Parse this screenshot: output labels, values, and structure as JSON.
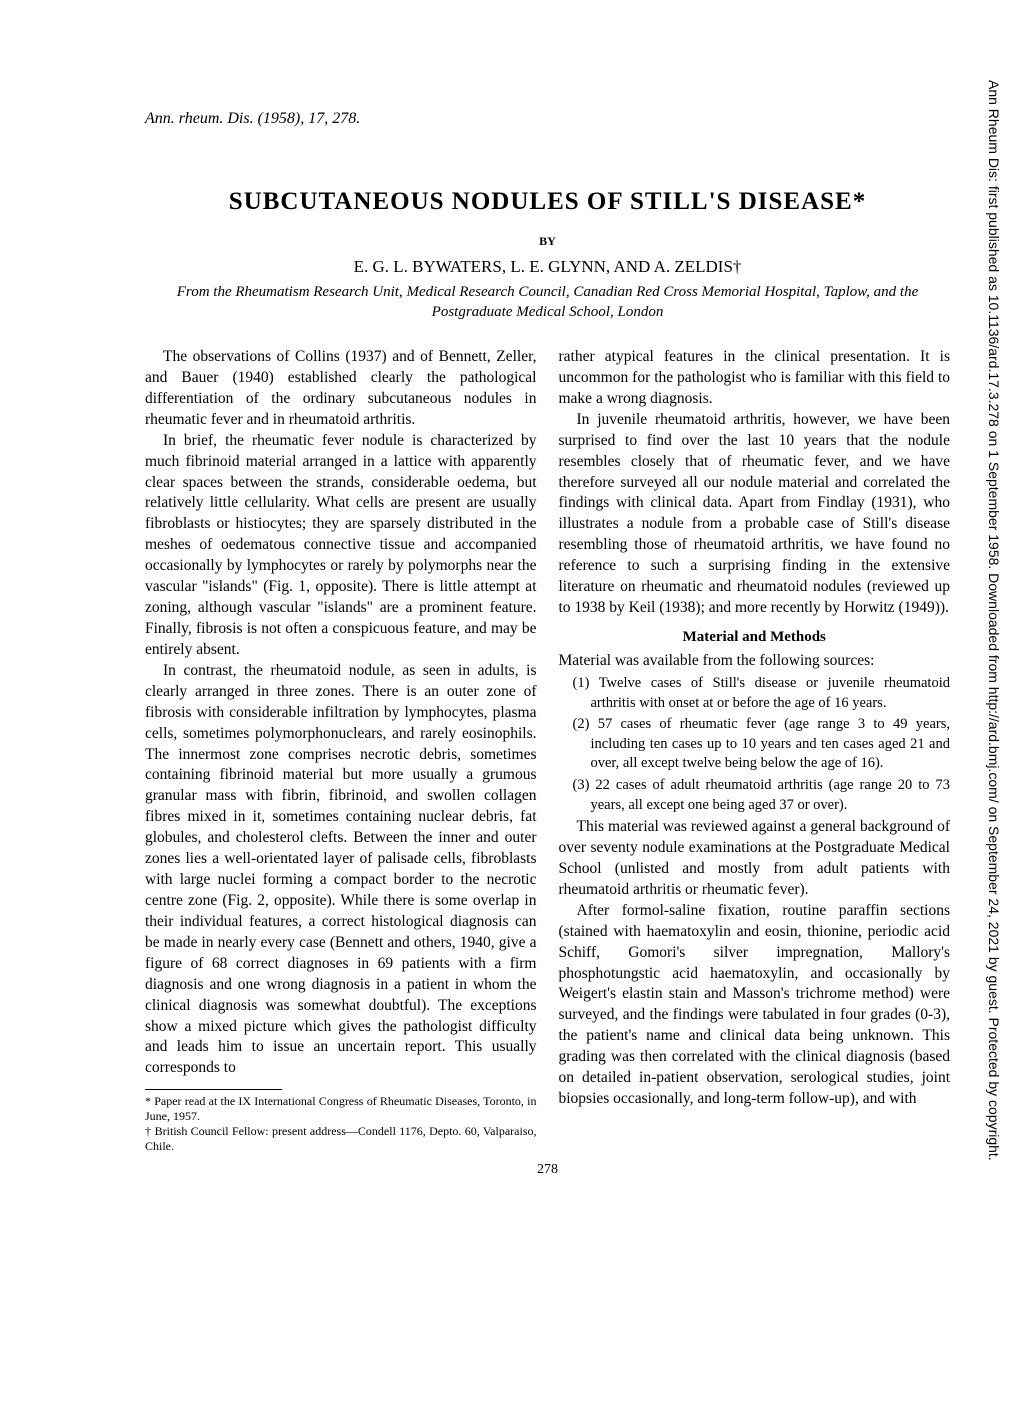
{
  "header_ref": "Ann. rheum. Dis. (1958), 17, 278.",
  "title": "SUBCUTANEOUS NODULES OF STILL'S DISEASE*",
  "by": "BY",
  "authors": "E. G. L. BYWATERS, L. E. GLYNN, AND A. ZELDIS†",
  "affiliation": "From the Rheumatism Research Unit, Medical Research Council, Canadian Red Cross Memorial Hospital, Taplow, and the Postgraduate Medical School, London",
  "col1": {
    "p1": "The observations of Collins (1937) and of Bennett, Zeller, and Bauer (1940) established clearly the pathological differentiation of the ordinary subcutaneous nodules in rheumatic fever and in rheumatoid arthritis.",
    "p2": "In brief, the rheumatic fever nodule is characterized by much fibrinoid material arranged in a lattice with apparently clear spaces between the strands, considerable oedema, but relatively little cellularity. What cells are present are usually fibroblasts or histiocytes; they are sparsely distributed in the meshes of oedematous connective tissue and accompanied occasionally by lymphocytes or rarely by polymorphs near the vascular \"islands\" (Fig. 1, opposite). There is little attempt at zoning, although vascular \"islands\" are a prominent feature. Finally, fibrosis is not often a conspicuous feature, and may be entirely absent.",
    "p3": "In contrast, the rheumatoid nodule, as seen in adults, is clearly arranged in three zones. There is an outer zone of fibrosis with considerable infiltration by lymphocytes, plasma cells, sometimes polymorphonuclears, and rarely eosinophils. The innermost zone comprises necrotic debris, sometimes containing fibrinoid material but more usually a grumous granular mass with fibrin, fibrinoid, and swollen collagen fibres mixed in it, sometimes containing nuclear debris, fat globules, and cholesterol clefts. Between the inner and outer zones lies a well-orientated layer of palisade cells, fibroblasts with large nuclei forming a compact border to the necrotic centre zone (Fig. 2, opposite). While there is some overlap in their individual features, a correct histological diagnosis can be made in nearly every case (Bennett and others, 1940, give a figure of 68 correct diagnoses in 69 patients with a firm diagnosis and one wrong diagnosis in a patient in whom the clinical diagnosis was somewhat doubtful). The exceptions show a mixed picture which gives the pathologist difficulty and leads him to issue an uncertain report. This usually corresponds to"
  },
  "col2": {
    "p1": "rather atypical features in the clinical presentation. It is uncommon for the pathologist who is familiar with this field to make a wrong diagnosis.",
    "p2": "In juvenile rheumatoid arthritis, however, we have been surprised to find over the last 10 years that the nodule resembles closely that of rheumatic fever, and we have therefore surveyed all our nodule material and correlated the findings with clinical data. Apart from Findlay (1931), who illustrates a nodule from a probable case of Still's disease resembling those of rheumatoid arthritis, we have found no reference to such a surprising finding in the extensive literature on rheumatic and rheumatoid nodules (reviewed up to 1938 by Keil (1938); and more recently by Horwitz (1949)).",
    "section_heading": "Material and Methods",
    "p3": "Material was available from the following sources:",
    "items": [
      "(1) Twelve cases of Still's disease or juvenile rheumatoid arthritis with onset at or before the age of 16 years.",
      "(2) 57 cases of rheumatic fever (age range 3 to 49 years, including ten cases up to 10 years and ten cases aged 21 and over, all except twelve being below the age of 16).",
      "(3) 22 cases of adult rheumatoid arthritis (age range 20 to 73 years, all except one being aged 37 or over)."
    ],
    "p4": "This material was reviewed against a general background of over seventy nodule examinations at the Postgraduate Medical School (unlisted and mostly from adult patients with rheumatoid arthritis or rheumatic fever).",
    "p5": "After formol-saline fixation, routine paraffin sections (stained with haematoxylin and eosin, thionine, periodic acid Schiff, Gomori's silver impregnation, Mallory's phosphotungstic acid haematoxylin, and occasionally by Weigert's elastin stain and Masson's trichrome method) were surveyed, and the findings were tabulated in four grades (0-3), the patient's name and clinical data being unknown. This grading was then correlated with the clinical diagnosis (based on detailed in-patient observation, serological studies, joint biopsies occasionally, and long-term follow-up), and with"
  },
  "footnote1": "* Paper read at the IX International Congress of Rheumatic Diseases, Toronto, in June, 1957.",
  "footnote2": "† British Council Fellow: present address—Condell 1176, Depto. 60, Valparaiso, Chile.",
  "page_number": "278",
  "side_text": "Ann Rheum Dis: first published as 10.1136/ard.17.3.278 on 1 September 1958. Downloaded from http://ard.bmj.com/ on September 24, 2021 by guest. Protected by copyright."
}
